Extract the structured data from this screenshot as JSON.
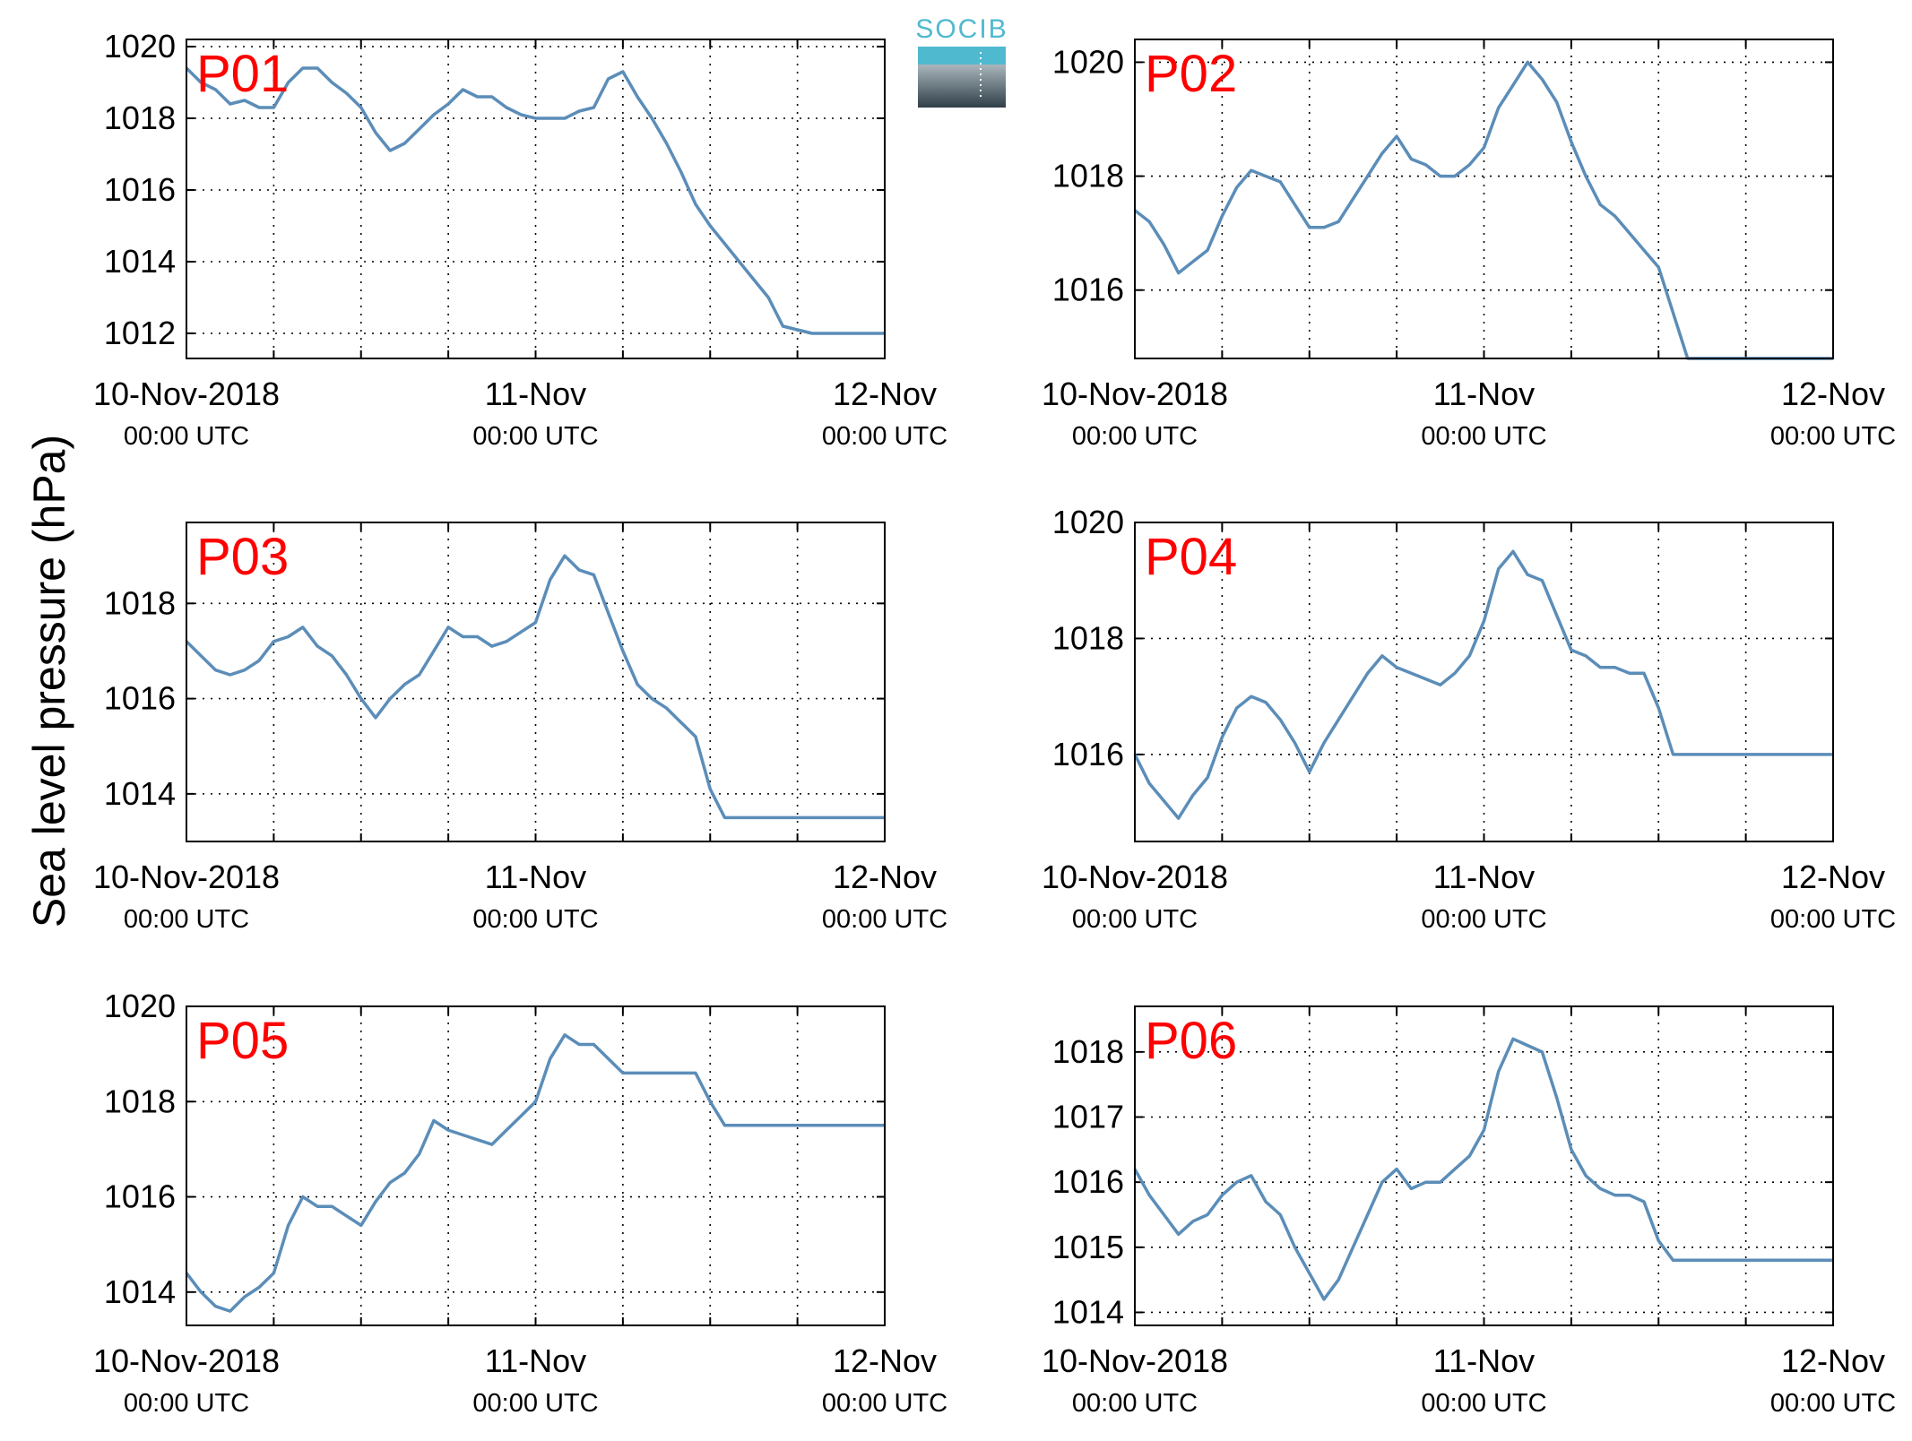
{
  "figure": {
    "ylabel": "Sea level pressure (hPa)",
    "logo_text": "SOCIB",
    "colors": {
      "line": "#5b8db8",
      "panel_label": "#ff0000",
      "logo_light": "#4fb9cf",
      "logo_dark": "#37474f"
    }
  },
  "chart_data": [
    {
      "type": "line",
      "label": "P01",
      "ylim": [
        1011.3,
        1020.2
      ],
      "yticks": [
        1012,
        1014,
        1016,
        1018,
        1020
      ],
      "xlim": [
        0,
        48
      ],
      "xticks": [
        {
          "label": "10-Nov-2018",
          "sub": "00:00 UTC",
          "x": 0
        },
        {
          "label": "11-Nov",
          "sub": "00:00 UTC",
          "x": 24
        },
        {
          "label": "12-Nov",
          "sub": "00:00 UTC",
          "x": 48
        }
      ],
      "series": [
        {
          "x": [
            0,
            1,
            2,
            3,
            4,
            5,
            6,
            7,
            8,
            9,
            10,
            11,
            12,
            13,
            14,
            15,
            16,
            17,
            18,
            19,
            20,
            21,
            22,
            23,
            24,
            25,
            26,
            27,
            28,
            29,
            30,
            31,
            32,
            33,
            34,
            35,
            36,
            37,
            38,
            39,
            40,
            41,
            42,
            43,
            44,
            45,
            46,
            47,
            48
          ],
          "y": [
            1019.4,
            1019.0,
            1018.8,
            1018.4,
            1018.5,
            1018.3,
            1018.3,
            1019.0,
            1019.4,
            1019.4,
            1019.0,
            1018.7,
            1018.3,
            1017.6,
            1017.1,
            1017.3,
            1017.7,
            1018.1,
            1018.4,
            1018.8,
            1018.6,
            1018.6,
            1018.3,
            1018.1,
            1018.0,
            1018.0,
            1018.0,
            1018.2,
            1018.3,
            1019.1,
            1019.3,
            1018.6,
            1018.0,
            1017.3,
            1016.5,
            1015.6,
            1015.0,
            1014.5,
            1014.0,
            1013.5,
            1013.0,
            1012.2,
            1012.1,
            1012.0,
            1012.0,
            1012.0,
            1012.0,
            1012.0,
            1012.0
          ]
        }
      ]
    },
    {
      "type": "line",
      "label": "P02",
      "ylim": [
        1014.8,
        1020.4
      ],
      "yticks": [
        1016,
        1018,
        1020
      ],
      "xlim": [
        0,
        48
      ],
      "xticks": [
        {
          "label": "10-Nov-2018",
          "sub": "00:00 UTC",
          "x": 0
        },
        {
          "label": "11-Nov",
          "sub": "00:00 UTC",
          "x": 24
        },
        {
          "label": "12-Nov",
          "sub": "00:00 UTC",
          "x": 48
        }
      ],
      "series": [
        {
          "x": [
            0,
            1,
            2,
            3,
            4,
            5,
            6,
            7,
            8,
            9,
            10,
            11,
            12,
            13,
            14,
            15,
            16,
            17,
            18,
            19,
            20,
            21,
            22,
            23,
            24,
            25,
            26,
            27,
            28,
            29,
            30,
            31,
            32,
            33,
            34,
            35,
            36,
            37,
            38,
            39,
            40,
            41,
            42,
            43,
            44,
            45,
            46,
            47,
            48
          ],
          "y": [
            1017.4,
            1017.2,
            1016.8,
            1016.3,
            1016.5,
            1016.7,
            1017.3,
            1017.8,
            1018.1,
            1018.0,
            1017.9,
            1017.5,
            1017.1,
            1017.1,
            1017.2,
            1017.6,
            1018.0,
            1018.4,
            1018.7,
            1018.3,
            1018.2,
            1018.0,
            1018.0,
            1018.2,
            1018.5,
            1019.2,
            1019.6,
            1020.0,
            1019.7,
            1019.3,
            1018.6,
            1018.0,
            1017.5,
            1017.3,
            1017.0,
            1016.7,
            1016.4,
            1015.6,
            1014.8,
            1014.8,
            1014.8,
            1014.8,
            1014.8,
            1014.8,
            1014.8,
            1014.8,
            1014.8,
            1014.8,
            1014.8
          ]
        }
      ]
    },
    {
      "type": "line",
      "label": "P03",
      "ylim": [
        1013.0,
        1019.7
      ],
      "yticks": [
        1014,
        1016,
        1018
      ],
      "xlim": [
        0,
        48
      ],
      "xticks": [
        {
          "label": "10-Nov-2018",
          "sub": "00:00 UTC",
          "x": 0
        },
        {
          "label": "11-Nov",
          "sub": "00:00 UTC",
          "x": 24
        },
        {
          "label": "12-Nov",
          "sub": "00:00 UTC",
          "x": 48
        }
      ],
      "series": [
        {
          "x": [
            0,
            1,
            2,
            3,
            4,
            5,
            6,
            7,
            8,
            9,
            10,
            11,
            12,
            13,
            14,
            15,
            16,
            17,
            18,
            19,
            20,
            21,
            22,
            23,
            24,
            25,
            26,
            27,
            28,
            29,
            30,
            31,
            32,
            33,
            34,
            35,
            36,
            37,
            38,
            39,
            40,
            41,
            42,
            43,
            44,
            45,
            46,
            47,
            48
          ],
          "y": [
            1017.2,
            1016.9,
            1016.6,
            1016.5,
            1016.6,
            1016.8,
            1017.2,
            1017.3,
            1017.5,
            1017.1,
            1016.9,
            1016.5,
            1016.0,
            1015.6,
            1016.0,
            1016.3,
            1016.5,
            1017.0,
            1017.5,
            1017.3,
            1017.3,
            1017.1,
            1017.2,
            1017.4,
            1017.6,
            1018.5,
            1019.0,
            1018.7,
            1018.6,
            1017.8,
            1017.0,
            1016.3,
            1016.0,
            1015.8,
            1015.5,
            1015.2,
            1014.1,
            1013.5,
            1013.5,
            1013.5,
            1013.5,
            1013.5,
            1013.5,
            1013.5,
            1013.5,
            1013.5,
            1013.5,
            1013.5,
            1013.5
          ]
        }
      ]
    },
    {
      "type": "line",
      "label": "P04",
      "ylim": [
        1014.5,
        1020.0
      ],
      "yticks": [
        1016,
        1018,
        1020
      ],
      "xlim": [
        0,
        48
      ],
      "xticks": [
        {
          "label": "10-Nov-2018",
          "sub": "00:00 UTC",
          "x": 0
        },
        {
          "label": "11-Nov",
          "sub": "00:00 UTC",
          "x": 24
        },
        {
          "label": "12-Nov",
          "sub": "00:00 UTC",
          "x": 48
        }
      ],
      "series": [
        {
          "x": [
            0,
            1,
            2,
            3,
            4,
            5,
            6,
            7,
            8,
            9,
            10,
            11,
            12,
            13,
            14,
            15,
            16,
            17,
            18,
            19,
            20,
            21,
            22,
            23,
            24,
            25,
            26,
            27,
            28,
            29,
            30,
            31,
            32,
            33,
            34,
            35,
            36,
            37,
            38,
            39,
            40,
            41,
            42,
            43,
            44,
            45,
            46,
            47,
            48
          ],
          "y": [
            1016.0,
            1015.5,
            1015.2,
            1014.9,
            1015.3,
            1015.6,
            1016.3,
            1016.8,
            1017.0,
            1016.9,
            1016.6,
            1016.2,
            1015.7,
            1016.2,
            1016.6,
            1017.0,
            1017.4,
            1017.7,
            1017.5,
            1017.4,
            1017.3,
            1017.2,
            1017.4,
            1017.7,
            1018.3,
            1019.2,
            1019.5,
            1019.1,
            1019.0,
            1018.4,
            1017.8,
            1017.7,
            1017.5,
            1017.5,
            1017.4,
            1017.4,
            1016.8,
            1016.0,
            1016.0,
            1016.0,
            1016.0,
            1016.0,
            1016.0,
            1016.0,
            1016.0,
            1016.0,
            1016.0,
            1016.0,
            1016.0
          ]
        }
      ]
    },
    {
      "type": "line",
      "label": "P05",
      "ylim": [
        1013.3,
        1020.0
      ],
      "yticks": [
        1014,
        1016,
        1018,
        1020
      ],
      "xlim": [
        0,
        48
      ],
      "xticks": [
        {
          "label": "10-Nov-2018",
          "sub": "00:00 UTC",
          "x": 0
        },
        {
          "label": "11-Nov",
          "sub": "00:00 UTC",
          "x": 24
        },
        {
          "label": "12-Nov",
          "sub": "00:00 UTC",
          "x": 48
        }
      ],
      "series": [
        {
          "x": [
            0,
            1,
            2,
            3,
            4,
            5,
            6,
            7,
            8,
            9,
            10,
            11,
            12,
            13,
            14,
            15,
            16,
            17,
            18,
            19,
            20,
            21,
            22,
            23,
            24,
            25,
            26,
            27,
            28,
            29,
            30,
            31,
            32,
            33,
            34,
            35,
            36,
            37,
            38,
            39,
            40,
            41,
            42,
            43,
            44,
            45,
            46,
            47,
            48
          ],
          "y": [
            1014.4,
            1014.0,
            1013.7,
            1013.6,
            1013.9,
            1014.1,
            1014.4,
            1015.4,
            1016.0,
            1015.8,
            1015.8,
            1015.6,
            1015.4,
            1015.9,
            1016.3,
            1016.5,
            1016.9,
            1017.6,
            1017.4,
            1017.3,
            1017.2,
            1017.1,
            1017.4,
            1017.7,
            1018.0,
            1018.9,
            1019.4,
            1019.2,
            1019.2,
            1018.9,
            1018.6,
            1018.6,
            1018.6,
            1018.6,
            1018.6,
            1018.6,
            1018.0,
            1017.5,
            1017.5,
            1017.5,
            1017.5,
            1017.5,
            1017.5,
            1017.5,
            1017.5,
            1017.5,
            1017.5,
            1017.5,
            1017.5
          ]
        }
      ]
    },
    {
      "type": "line",
      "label": "P06",
      "ylim": [
        1013.8,
        1018.7
      ],
      "yticks": [
        1014,
        1015,
        1016,
        1017,
        1018
      ],
      "xlim": [
        0,
        48
      ],
      "xticks": [
        {
          "label": "10-Nov-2018",
          "sub": "00:00 UTC",
          "x": 0
        },
        {
          "label": "11-Nov",
          "sub": "00:00 UTC",
          "x": 24
        },
        {
          "label": "12-Nov",
          "sub": "00:00 UTC",
          "x": 48
        }
      ],
      "series": [
        {
          "x": [
            0,
            1,
            2,
            3,
            4,
            5,
            6,
            7,
            8,
            9,
            10,
            11,
            12,
            13,
            14,
            15,
            16,
            17,
            18,
            19,
            20,
            21,
            22,
            23,
            24,
            25,
            26,
            27,
            28,
            29,
            30,
            31,
            32,
            33,
            34,
            35,
            36,
            37,
            38,
            39,
            40,
            41,
            42,
            43,
            44,
            45,
            46,
            47,
            48
          ],
          "y": [
            1016.2,
            1015.8,
            1015.5,
            1015.2,
            1015.4,
            1015.5,
            1015.8,
            1016.0,
            1016.1,
            1015.7,
            1015.5,
            1015.0,
            1014.6,
            1014.2,
            1014.5,
            1015.0,
            1015.5,
            1016.0,
            1016.2,
            1015.9,
            1016.0,
            1016.0,
            1016.2,
            1016.4,
            1016.8,
            1017.7,
            1018.2,
            1018.1,
            1018.0,
            1017.3,
            1016.5,
            1016.1,
            1015.9,
            1015.8,
            1015.8,
            1015.7,
            1015.1,
            1014.8,
            1014.8,
            1014.8,
            1014.8,
            1014.8,
            1014.8,
            1014.8,
            1014.8,
            1014.8,
            1014.8,
            1014.8,
            1014.8
          ]
        }
      ]
    }
  ]
}
